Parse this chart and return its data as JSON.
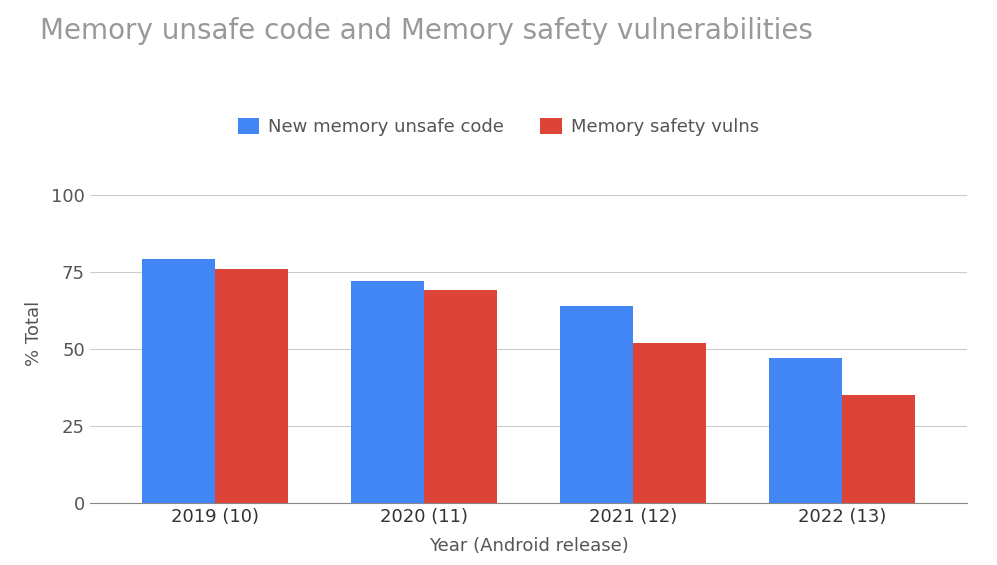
{
  "title": "Memory unsafe code and Memory safety vulnerabilities",
  "xlabel": "Year (Android release)",
  "ylabel": "% Total",
  "categories": [
    "2019 (10)",
    "2020 (11)",
    "2021 (12)",
    "2022 (13)"
  ],
  "series": [
    {
      "label": "New memory unsafe code",
      "color": "#4285F4",
      "values": [
        79,
        72,
        64,
        47
      ]
    },
    {
      "label": "Memory safety vulns",
      "color": "#DB4437",
      "values": [
        76,
        69,
        52,
        35
      ]
    }
  ],
  "ylim": [
    0,
    110
  ],
  "yticks": [
    0,
    25,
    50,
    75,
    100
  ],
  "bar_width": 0.35,
  "background_color": "#ffffff",
  "title_color": "#999999",
  "axis_label_color": "#555555",
  "tick_color": "#555555",
  "xtick_color": "#333333",
  "grid_color": "#cccccc",
  "title_fontsize": 20,
  "label_fontsize": 13,
  "tick_fontsize": 13,
  "legend_fontsize": 13
}
